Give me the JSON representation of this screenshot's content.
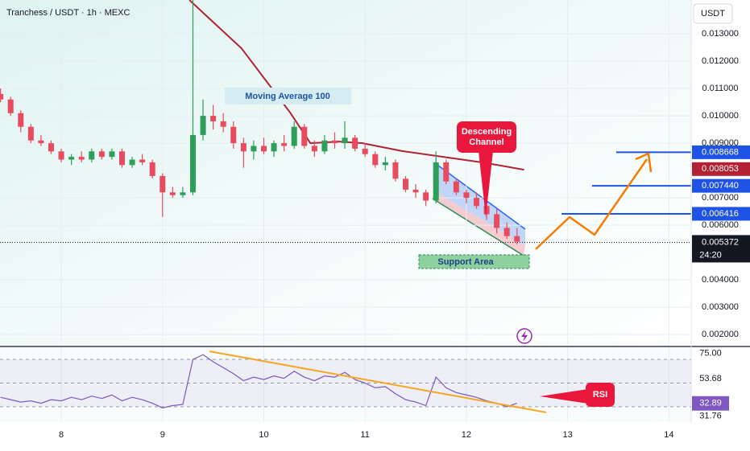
{
  "chart_data": {
    "type": "candlestick",
    "title": "Tranchess / USDT · 1h · MEXC",
    "currency": "USDT",
    "up_color": "#2f9e5b",
    "down_color": "#e84a5f",
    "grid": true,
    "x": [
      7.4,
      7.5,
      7.6,
      7.7,
      7.8,
      7.9,
      8.0,
      8.1,
      8.2,
      8.3,
      8.4,
      8.5,
      8.6,
      8.7,
      8.8,
      8.9,
      9.0,
      9.1,
      9.2,
      9.3,
      9.4,
      9.5,
      9.6,
      9.7,
      9.8,
      9.9,
      10.0,
      10.1,
      10.2,
      10.3,
      10.4,
      10.5,
      10.6,
      10.7,
      10.8,
      10.9,
      11.0,
      11.1,
      11.2,
      11.3,
      11.4,
      11.5,
      11.6,
      11.7,
      11.8,
      11.9,
      12.0,
      12.1,
      12.2,
      12.3,
      12.4,
      12.5
    ],
    "open": [
      0.0108,
      0.0106,
      0.0101,
      0.0096,
      0.0091,
      0.009,
      0.0087,
      0.0084,
      0.0085,
      0.0084,
      0.0087,
      0.0085,
      0.0087,
      0.0082,
      0.0084,
      0.0083,
      0.0078,
      0.0072,
      0.0071,
      0.0072,
      0.0093,
      0.01,
      0.0098,
      0.0096,
      0.009,
      0.0087,
      0.0089,
      0.0087,
      0.009,
      0.0089,
      0.0096,
      0.0089,
      0.0087,
      0.0091,
      0.009,
      0.0092,
      0.0088,
      0.0086,
      0.0082,
      0.0083,
      0.0077,
      0.0073,
      0.0072,
      0.0069,
      0.0083,
      0.0076,
      0.0072,
      0.007,
      0.0067,
      0.0064,
      0.0059,
      0.0056
    ],
    "high": [
      0.011,
      0.0107,
      0.0102,
      0.0097,
      0.0093,
      0.0091,
      0.0088,
      0.0086,
      0.0087,
      0.0088,
      0.0088,
      0.0088,
      0.0088,
      0.0085,
      0.0086,
      0.0084,
      0.0079,
      0.0074,
      0.0074,
      0.0143,
      0.0106,
      0.0104,
      0.0101,
      0.0098,
      0.0092,
      0.0091,
      0.0092,
      0.0091,
      0.0093,
      0.0098,
      0.0097,
      0.0091,
      0.0093,
      0.0094,
      0.0098,
      0.0093,
      0.009,
      0.0087,
      0.0085,
      0.0084,
      0.0078,
      0.0075,
      0.0073,
      0.0087,
      0.0084,
      0.0077,
      0.0073,
      0.0072,
      0.0069,
      0.0066,
      0.0061,
      0.0059
    ],
    "low": [
      0.0105,
      0.01,
      0.0094,
      0.009,
      0.0089,
      0.0086,
      0.0083,
      0.0082,
      0.0083,
      0.0083,
      0.0084,
      0.0084,
      0.0081,
      0.0081,
      0.0082,
      0.0077,
      0.0063,
      0.007,
      0.007,
      0.0071,
      0.0091,
      0.0095,
      0.0094,
      0.0088,
      0.0081,
      0.0084,
      0.0086,
      0.0085,
      0.0087,
      0.0088,
      0.0088,
      0.0085,
      0.0086,
      0.0088,
      0.0088,
      0.0087,
      0.0085,
      0.0081,
      0.008,
      0.0076,
      0.0072,
      0.007,
      0.0067,
      0.0068,
      0.0075,
      0.0071,
      0.0068,
      0.0066,
      0.0062,
      0.0057,
      0.0055,
      0.0053
    ],
    "close": [
      0.0106,
      0.0101,
      0.0096,
      0.0091,
      0.009,
      0.0087,
      0.0084,
      0.0085,
      0.0084,
      0.0087,
      0.0085,
      0.0087,
      0.0082,
      0.0084,
      0.0083,
      0.0078,
      0.0072,
      0.0071,
      0.0072,
      0.0093,
      0.01,
      0.0098,
      0.0096,
      0.009,
      0.0087,
      0.0089,
      0.0087,
      0.009,
      0.0089,
      0.0096,
      0.0089,
      0.0087,
      0.0091,
      0.009,
      0.0092,
      0.0088,
      0.0086,
      0.0082,
      0.0083,
      0.0077,
      0.0073,
      0.0072,
      0.0069,
      0.0083,
      0.0076,
      0.0072,
      0.007,
      0.0067,
      0.0064,
      0.0059,
      0.0056,
      0.0054
    ],
    "xlim": [
      7.395,
      14.22
    ],
    "xticks": [
      8,
      9,
      10,
      11,
      12,
      13,
      14
    ],
    "ylim": [
      0.00159,
      0.01424
    ],
    "yticks": [
      {
        "value": 0.013,
        "label": "0.013000"
      },
      {
        "value": 0.012,
        "label": "0.012000"
      },
      {
        "value": 0.011,
        "label": "0.011000"
      },
      {
        "value": 0.01,
        "label": "0.010000"
      },
      {
        "value": 0.009,
        "label": "0.009000"
      },
      {
        "value": 0.007,
        "label": "0.007000"
      },
      {
        "value": 0.006,
        "label": "0.006000"
      },
      {
        "value": 0.004,
        "label": "0.004000"
      },
      {
        "value": 0.003,
        "label": "0.003000"
      },
      {
        "value": 0.002,
        "label": "0.002000"
      }
    ],
    "moving_average": {
      "name": "Moving Average 100",
      "color": "#b22234",
      "x": [
        9.265,
        9.78,
        10.26,
        10.46,
        10.74,
        10.975,
        11.37,
        11.77,
        12.17,
        12.57
      ],
      "values": [
        0.01424,
        0.01247,
        0.01012,
        0.009,
        0.00906,
        0.009,
        0.00871,
        0.0085,
        0.00829,
        0.00803
      ],
      "last": 0.008053
    },
    "levels": {
      "color": "#1e53e5",
      "values": [
        0.008668,
        0.00744,
        0.006416
      ],
      "value_labels": [
        "0.008668",
        "0.007440",
        "0.006416"
      ],
      "x_start": [
        13.48,
        13.24,
        12.94
      ]
    },
    "last_price": {
      "value": 0.005372,
      "countdown": "24:20"
    },
    "annotations": {
      "channel": [
        "Descending",
        "Channel"
      ],
      "support": "Support Area"
    },
    "rsi": {
      "name": "RSI",
      "color": "#7e57c2",
      "values": [
        38,
        36,
        34,
        35,
        33,
        36,
        35,
        38,
        36,
        39,
        37,
        40,
        35,
        38,
        36,
        33,
        29,
        31,
        32,
        70,
        74,
        68,
        63,
        58,
        52,
        55,
        53,
        56,
        54,
        60,
        55,
        52,
        56,
        55,
        59,
        53,
        50,
        46,
        47,
        41,
        36,
        34,
        31,
        55,
        46,
        42,
        40,
        38,
        35,
        33,
        30,
        33
      ],
      "ylim": [
        17.1,
        80.2
      ],
      "yticks": [
        {
          "value": 75,
          "label": "75.00"
        },
        {
          "value": 53.68,
          "label": "53.68"
        },
        {
          "value": 31.76,
          "label": "31.76"
        }
      ],
      "bands": [
        70,
        50,
        30
      ],
      "last": 32.89
    }
  }
}
